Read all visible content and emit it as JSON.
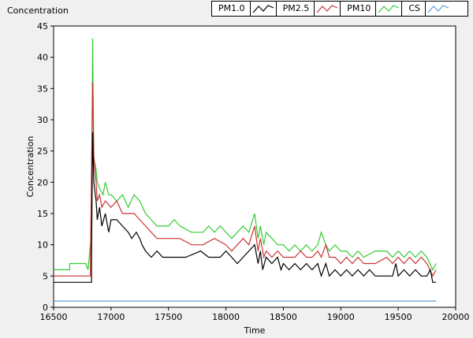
{
  "chart_data": {
    "type": "line",
    "title": "Concentration",
    "xlabel": "Time",
    "ylabel": "Concentration",
    "xlim": [
      16500,
      20000
    ],
    "ylim": [
      0,
      45
    ],
    "xticks": [
      "16500",
      "17000",
      "17500",
      "18000",
      "18500",
      "19000",
      "19500",
      "20000"
    ],
    "yticks": [
      "0",
      "5",
      "10",
      "15",
      "20",
      "25",
      "30",
      "35",
      "40",
      "45"
    ],
    "grid": false,
    "legend_position": "top-right",
    "series": [
      {
        "name": "PM1.0",
        "color": "#000000",
        "points": [
          [
            16500,
            4
          ],
          [
            16830,
            4
          ],
          [
            16830,
            8
          ],
          [
            16840,
            28
          ],
          [
            16850,
            20
          ],
          [
            16870,
            17
          ],
          [
            16880,
            14
          ],
          [
            16900,
            16
          ],
          [
            16920,
            13
          ],
          [
            16950,
            15
          ],
          [
            16980,
            12
          ],
          [
            17000,
            14
          ],
          [
            17050,
            14
          ],
          [
            17100,
            13
          ],
          [
            17150,
            12
          ],
          [
            17180,
            11
          ],
          [
            17220,
            12
          ],
          [
            17250,
            11
          ],
          [
            17270,
            10
          ],
          [
            17300,
            9
          ],
          [
            17350,
            8
          ],
          [
            17400,
            9
          ],
          [
            17450,
            8
          ],
          [
            17550,
            8
          ],
          [
            17650,
            8
          ],
          [
            17780,
            9
          ],
          [
            17850,
            8
          ],
          [
            17950,
            8
          ],
          [
            18000,
            9
          ],
          [
            18050,
            8
          ],
          [
            18100,
            7
          ],
          [
            18150,
            8
          ],
          [
            18200,
            9
          ],
          [
            18250,
            10
          ],
          [
            18280,
            7
          ],
          [
            18300,
            9
          ],
          [
            18320,
            6
          ],
          [
            18350,
            8
          ],
          [
            18400,
            7
          ],
          [
            18450,
            8
          ],
          [
            18480,
            6
          ],
          [
            18500,
            7
          ],
          [
            18550,
            6
          ],
          [
            18600,
            7
          ],
          [
            18650,
            6
          ],
          [
            18700,
            7
          ],
          [
            18750,
            6
          ],
          [
            18800,
            7
          ],
          [
            18830,
            5
          ],
          [
            18870,
            7
          ],
          [
            18900,
            5
          ],
          [
            18950,
            6
          ],
          [
            19000,
            5
          ],
          [
            19050,
            6
          ],
          [
            19100,
            5
          ],
          [
            19150,
            6
          ],
          [
            19200,
            5
          ],
          [
            19250,
            6
          ],
          [
            19300,
            5
          ],
          [
            19400,
            5
          ],
          [
            19450,
            5
          ],
          [
            19480,
            7
          ],
          [
            19500,
            5
          ],
          [
            19550,
            6
          ],
          [
            19600,
            5
          ],
          [
            19650,
            6
          ],
          [
            19700,
            5
          ],
          [
            19750,
            5
          ],
          [
            19780,
            6
          ],
          [
            19800,
            4
          ],
          [
            19830,
            4
          ]
        ]
      },
      {
        "name": "PM2.5",
        "color": "#cc3333",
        "points": [
          [
            16500,
            5
          ],
          [
            16820,
            5
          ],
          [
            16820,
            6
          ],
          [
            16840,
            36
          ],
          [
            16850,
            24
          ],
          [
            16870,
            20
          ],
          [
            16880,
            17
          ],
          [
            16900,
            18
          ],
          [
            16920,
            16
          ],
          [
            16950,
            17
          ],
          [
            17000,
            16
          ],
          [
            17050,
            17
          ],
          [
            17100,
            15
          ],
          [
            17200,
            15
          ],
          [
            17250,
            14
          ],
          [
            17300,
            13
          ],
          [
            17350,
            12
          ],
          [
            17400,
            11
          ],
          [
            17450,
            11
          ],
          [
            17550,
            11
          ],
          [
            17600,
            11
          ],
          [
            17700,
            10
          ],
          [
            17800,
            10
          ],
          [
            17900,
            11
          ],
          [
            18000,
            10
          ],
          [
            18050,
            9
          ],
          [
            18100,
            10
          ],
          [
            18150,
            11
          ],
          [
            18200,
            10
          ],
          [
            18250,
            13
          ],
          [
            18280,
            9
          ],
          [
            18300,
            11
          ],
          [
            18330,
            8
          ],
          [
            18350,
            9
          ],
          [
            18400,
            8
          ],
          [
            18450,
            9
          ],
          [
            18500,
            8
          ],
          [
            18550,
            8
          ],
          [
            18600,
            8
          ],
          [
            18650,
            9
          ],
          [
            18700,
            8
          ],
          [
            18750,
            8
          ],
          [
            18800,
            9
          ],
          [
            18830,
            8
          ],
          [
            18870,
            10
          ],
          [
            18900,
            8
          ],
          [
            18950,
            8
          ],
          [
            19000,
            7
          ],
          [
            19050,
            8
          ],
          [
            19100,
            7
          ],
          [
            19150,
            8
          ],
          [
            19200,
            7
          ],
          [
            19300,
            7
          ],
          [
            19400,
            8
          ],
          [
            19450,
            7
          ],
          [
            19500,
            8
          ],
          [
            19550,
            7
          ],
          [
            19600,
            8
          ],
          [
            19650,
            7
          ],
          [
            19700,
            8
          ],
          [
            19750,
            7
          ],
          [
            19800,
            5
          ],
          [
            19830,
            6
          ]
        ]
      },
      {
        "name": "PM10",
        "color": "#33cc33",
        "points": [
          [
            16500,
            6
          ],
          [
            16640,
            6
          ],
          [
            16640,
            7
          ],
          [
            16780,
            7
          ],
          [
            16800,
            6
          ],
          [
            16830,
            12
          ],
          [
            16840,
            43
          ],
          [
            16850,
            24
          ],
          [
            16870,
            22
          ],
          [
            16880,
            20
          ],
          [
            16900,
            19
          ],
          [
            16930,
            18
          ],
          [
            16950,
            20
          ],
          [
            16980,
            18
          ],
          [
            17000,
            18
          ],
          [
            17050,
            17
          ],
          [
            17100,
            18
          ],
          [
            17150,
            16
          ],
          [
            17200,
            18
          ],
          [
            17250,
            17
          ],
          [
            17300,
            15
          ],
          [
            17350,
            14
          ],
          [
            17400,
            13
          ],
          [
            17500,
            13
          ],
          [
            17550,
            14
          ],
          [
            17600,
            13
          ],
          [
            17700,
            12
          ],
          [
            17800,
            12
          ],
          [
            17850,
            13
          ],
          [
            17900,
            12
          ],
          [
            17950,
            13
          ],
          [
            18000,
            12
          ],
          [
            18050,
            11
          ],
          [
            18100,
            12
          ],
          [
            18150,
            13
          ],
          [
            18200,
            12
          ],
          [
            18250,
            15
          ],
          [
            18280,
            11
          ],
          [
            18300,
            13
          ],
          [
            18330,
            10
          ],
          [
            18350,
            12
          ],
          [
            18400,
            11
          ],
          [
            18450,
            10
          ],
          [
            18500,
            10
          ],
          [
            18550,
            9
          ],
          [
            18600,
            10
          ],
          [
            18650,
            9
          ],
          [
            18700,
            10
          ],
          [
            18750,
            9
          ],
          [
            18800,
            10
          ],
          [
            18830,
            12
          ],
          [
            18870,
            10
          ],
          [
            18900,
            9
          ],
          [
            18950,
            10
          ],
          [
            19000,
            9
          ],
          [
            19050,
            9
          ],
          [
            19100,
            8
          ],
          [
            19150,
            9
          ],
          [
            19200,
            8
          ],
          [
            19300,
            9
          ],
          [
            19400,
            9
          ],
          [
            19450,
            8
          ],
          [
            19500,
            9
          ],
          [
            19550,
            8
          ],
          [
            19600,
            9
          ],
          [
            19650,
            8
          ],
          [
            19700,
            9
          ],
          [
            19750,
            8
          ],
          [
            19800,
            6
          ],
          [
            19830,
            7
          ]
        ]
      },
      {
        "name": "CS",
        "color": "#5b9bd5",
        "points": [
          [
            16500,
            1
          ],
          [
            19830,
            1
          ]
        ]
      }
    ]
  }
}
